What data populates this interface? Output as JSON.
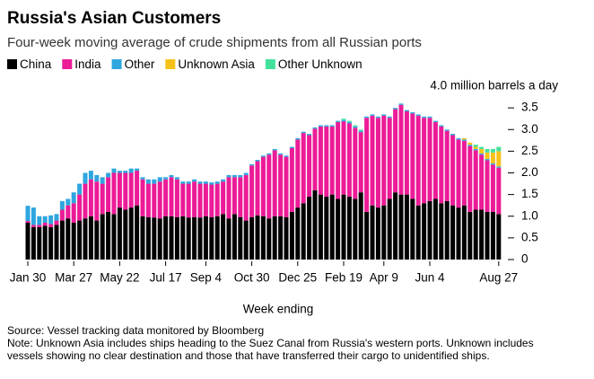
{
  "chart_data": {
    "type": "stacked-bar",
    "title": "Russia's Asian Customers",
    "subtitle": "Four-week moving average of crude shipments from all Russian ports",
    "x_label": "Week ending",
    "source": "Source: Vessel tracking data monitored by Bloomberg",
    "note": "Note: Unknown Asia includes ships heading to the Suez Canal from Russia's western ports. Unknown includes vessels showing no clear destination and those that have transferred their cargo to unidentified ships.",
    "categories": [
      "Jan 30",
      null,
      null,
      null,
      null,
      null,
      null,
      null,
      "Mar 27",
      null,
      null,
      null,
      null,
      null,
      null,
      null,
      "May 22",
      null,
      null,
      null,
      null,
      null,
      null,
      null,
      "Jul 17",
      null,
      null,
      null,
      null,
      null,
      null,
      "Sep 4",
      null,
      null,
      null,
      null,
      null,
      null,
      null,
      "Oct 30",
      null,
      null,
      null,
      null,
      null,
      null,
      null,
      "Dec 25",
      null,
      null,
      null,
      null,
      null,
      null,
      null,
      "Feb 19",
      null,
      null,
      null,
      null,
      null,
      null,
      "Apr 9",
      null,
      null,
      null,
      null,
      null,
      null,
      null,
      "Jun 4",
      null,
      null,
      null,
      null,
      null,
      null,
      null,
      null,
      null,
      null,
      null,
      "Aug 27"
    ],
    "series": [
      {
        "name": "China",
        "color": "#000000",
        "values": [
          0.85,
          0.75,
          0.75,
          0.78,
          0.75,
          0.8,
          0.9,
          0.95,
          0.85,
          0.9,
          0.95,
          1.0,
          0.9,
          1.05,
          1.1,
          1.05,
          1.2,
          1.15,
          1.2,
          1.25,
          1.0,
          0.98,
          0.97,
          0.95,
          1.0,
          1.0,
          0.98,
          1.0,
          0.97,
          0.98,
          0.97,
          1.0,
          0.98,
          1.0,
          1.05,
          0.95,
          1.05,
          0.98,
          0.9,
          0.98,
          1.02,
          1.0,
          0.95,
          1.0,
          1.0,
          0.98,
          1.1,
          1.2,
          1.3,
          1.45,
          1.6,
          1.5,
          1.45,
          1.5,
          1.4,
          1.5,
          1.45,
          1.4,
          1.55,
          1.1,
          1.25,
          1.2,
          1.25,
          1.4,
          1.55,
          1.5,
          1.5,
          1.4,
          1.25,
          1.3,
          1.35,
          1.4,
          1.3,
          1.35,
          1.25,
          1.2,
          1.25,
          1.1,
          1.15,
          1.15,
          1.1,
          1.1,
          1.05
        ]
      },
      {
        "name": "India",
        "color": "#ec1b97",
        "values": [
          0.04,
          0.05,
          0.05,
          0.07,
          0.07,
          0.1,
          0.25,
          0.3,
          0.45,
          0.6,
          0.8,
          0.85,
          0.9,
          0.7,
          0.8,
          0.95,
          0.8,
          0.85,
          0.8,
          0.8,
          0.85,
          0.77,
          0.78,
          0.85,
          0.85,
          0.9,
          0.87,
          0.75,
          0.78,
          0.82,
          0.78,
          0.75,
          0.75,
          0.75,
          0.75,
          0.95,
          0.85,
          0.92,
          1.05,
          1.19,
          1.25,
          1.37,
          1.47,
          1.52,
          1.42,
          1.39,
          1.47,
          1.57,
          1.62,
          1.42,
          1.42,
          1.57,
          1.62,
          1.57,
          1.77,
          1.69,
          1.69,
          1.64,
          1.39,
          2.17,
          2.07,
          2.07,
          2.07,
          1.87,
          1.92,
          2.07,
          1.92,
          1.97,
          2.07,
          1.97,
          1.92,
          1.77,
          1.77,
          1.62,
          1.62,
          1.57,
          1.49,
          1.52,
          1.37,
          1.27,
          1.19,
          1.09,
          1.07
        ]
      },
      {
        "name": "Other",
        "color": "#2ea6df",
        "values": [
          0.35,
          0.4,
          0.2,
          0.15,
          0.2,
          0.15,
          0.2,
          0.15,
          0.25,
          0.25,
          0.25,
          0.2,
          0.15,
          0.15,
          0.1,
          0.1,
          0.05,
          0.05,
          0.1,
          0.05,
          0.05,
          0.1,
          0.1,
          0.1,
          0.05,
          0.05,
          0.05,
          0.05,
          0.05,
          0.05,
          0.05,
          0.05,
          0.05,
          0.05,
          0.05,
          0.05,
          0.05,
          0.05,
          0.05,
          0.03,
          0.03,
          0.03,
          0.03,
          0.03,
          0.03,
          0.03,
          0.03,
          0.03,
          0.03,
          0.03,
          0.03,
          0.03,
          0.03,
          0.03,
          0.03,
          0.03,
          0.03,
          0.03,
          0.03,
          0.03,
          0.03,
          0.03,
          0.03,
          0.03,
          0.03,
          0.03,
          0.03,
          0.03,
          0.03,
          0.03,
          0.03,
          0.03,
          0.03,
          0.03,
          0.03,
          0.03,
          0.03,
          0.03,
          0.03,
          0.03,
          0.03,
          0.03,
          0.03
        ]
      },
      {
        "name": "Unknown Asia",
        "color": "#f6c21a",
        "values": [
          0,
          0,
          0,
          0,
          0,
          0,
          0,
          0,
          0,
          0,
          0,
          0,
          0,
          0,
          0,
          0,
          0,
          0,
          0,
          0,
          0,
          0,
          0,
          0,
          0,
          0,
          0,
          0,
          0,
          0,
          0,
          0,
          0,
          0,
          0,
          0,
          0,
          0,
          0,
          0,
          0,
          0,
          0,
          0,
          0,
          0,
          0,
          0,
          0,
          0,
          0,
          0,
          0,
          0,
          0,
          0,
          0,
          0,
          0,
          0,
          0,
          0,
          0,
          0,
          0,
          0,
          0,
          0,
          0,
          0,
          0,
          0,
          0,
          0,
          0,
          0,
          0.03,
          0.05,
          0.05,
          0.1,
          0.15,
          0.25,
          0.35
        ]
      },
      {
        "name": "Other Unknown",
        "color": "#43e09b",
        "values": [
          0,
          0,
          0,
          0,
          0,
          0,
          0,
          0,
          0,
          0,
          0,
          0,
          0,
          0,
          0,
          0,
          0,
          0,
          0,
          0,
          0,
          0,
          0,
          0,
          0,
          0,
          0,
          0,
          0,
          0,
          0,
          0,
          0,
          0,
          0,
          0,
          0,
          0,
          0,
          0,
          0,
          0,
          0,
          0,
          0,
          0,
          0,
          0,
          0,
          0,
          0,
          0,
          0,
          0,
          0,
          0.03,
          0.03,
          0.03,
          0.03,
          0,
          0,
          0,
          0,
          0,
          0,
          0,
          0,
          0,
          0,
          0,
          0,
          0,
          0,
          0,
          0,
          0,
          0,
          0,
          0.05,
          0.05,
          0.08,
          0.08,
          0.1
        ]
      }
    ],
    "ylim": [
      0,
      4
    ],
    "yticks": [
      0,
      0.5,
      {
        "value": 1,
        "label": "1.0"
      },
      1.5,
      {
        "value": 2,
        "label": "2.0"
      },
      2.5,
      {
        "value": 3,
        "label": "3.0"
      },
      3.5,
      {
        "value": 4,
        "label": "4.0 million barrels a day"
      }
    ],
    "legend": "top-left"
  }
}
